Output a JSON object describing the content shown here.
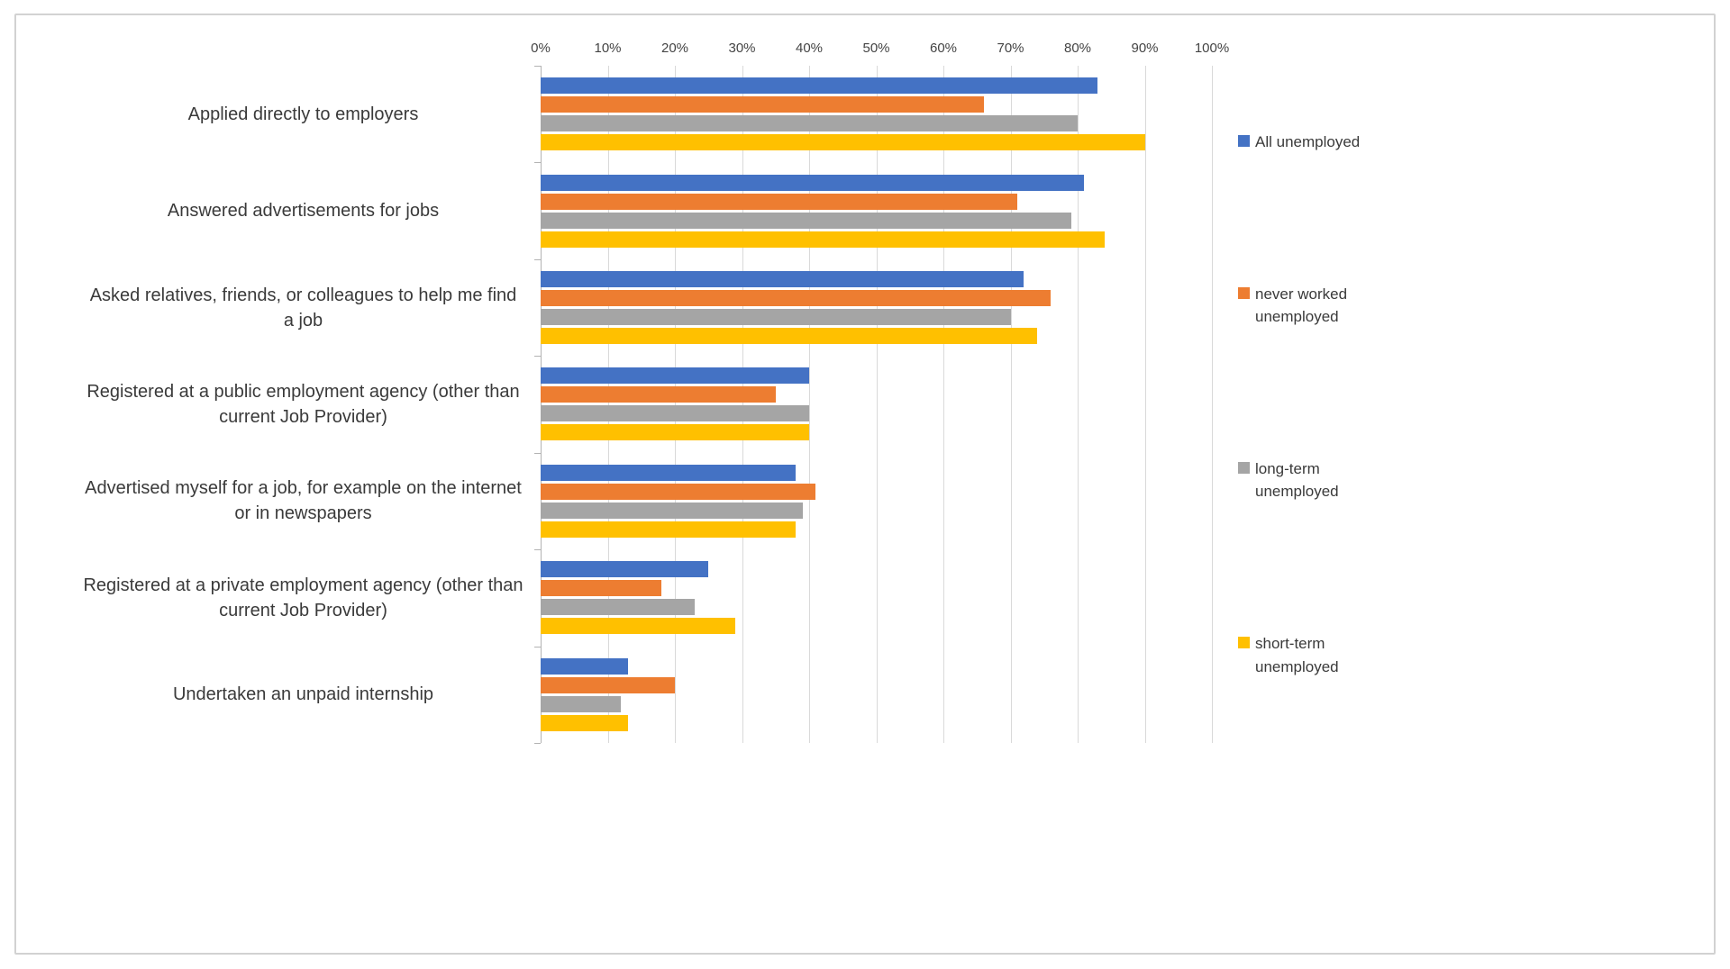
{
  "chart_data": {
    "type": "bar",
    "orientation": "horizontal",
    "title": "",
    "categories": [
      "Applied directly to employers",
      "Answered advertisements for jobs",
      "Asked relatives, friends, or colleagues to help me find a job",
      "Registered at a public employment agency (other than current Job Provider)",
      "Advertised myself for a job, for example on the internet or in newspapers",
      "Registered at a private employment agency (other than current Job Provider)",
      "Undertaken an unpaid internship"
    ],
    "series": [
      {
        "name": "All unemployed",
        "color": "#4472C4",
        "values": [
          83,
          81,
          72,
          40,
          38,
          25,
          13
        ]
      },
      {
        "name": "never worked unemployed",
        "color": "#ED7D31",
        "values": [
          66,
          71,
          76,
          35,
          41,
          18,
          20
        ]
      },
      {
        "name": "long-term unemployed",
        "color": "#A5A5A5",
        "values": [
          80,
          79,
          70,
          40,
          39,
          23,
          12
        ]
      },
      {
        "name": "short-term unemployed",
        "color": "#FFC000",
        "values": [
          90,
          84,
          74,
          40,
          38,
          29,
          13
        ]
      }
    ],
    "x_axis": {
      "min": 0,
      "max": 100,
      "tick_step": 10,
      "ticks": [
        "0%",
        "10%",
        "20%",
        "30%",
        "40%",
        "50%",
        "60%",
        "70%",
        "80%",
        "90%",
        "100%"
      ]
    },
    "grid": true,
    "legend_position": "right",
    "style": {
      "gridline_color": "#d9d9d9",
      "axis_line_color": "#b3b3b3",
      "text_color": "#3a3a3a",
      "frame_border_color": "#d2d2d2"
    }
  }
}
